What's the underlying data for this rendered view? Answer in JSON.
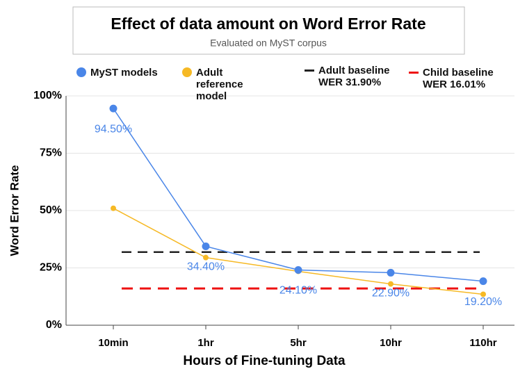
{
  "chart_data": {
    "type": "line",
    "title": "Effect of data amount on Word Error Rate",
    "subtitle": "Evaluated on MyST corpus",
    "xlabel": "Hours of Fine-tuning Data",
    "ylabel": "Word Error Rate",
    "categories": [
      "10min",
      "1hr",
      "5hr",
      "10hr",
      "110hr"
    ],
    "series": [
      {
        "name": "MyST models",
        "color": "#4a86e8",
        "values": [
          94.5,
          34.4,
          24.1,
          22.9,
          19.2
        ],
        "value_labels": [
          "94.50%",
          "34.40%",
          "24.10%",
          "22.90%",
          "19.20%"
        ]
      },
      {
        "name": "Adult reference model",
        "color": "#f6b925",
        "values": [
          51,
          29.5,
          23.5,
          18,
          13.5
        ]
      }
    ],
    "baselines": [
      {
        "name": "Adult baseline WER 31.90%",
        "color": "#222222",
        "value": 31.9
      },
      {
        "name": "Child baseline WER 16.01%",
        "color": "#ee1111",
        "value": 16.01
      }
    ],
    "ylim": [
      0,
      100
    ],
    "yticks": [
      {
        "value": 0,
        "label": "0%"
      },
      {
        "value": 25,
        "label": "25%"
      },
      {
        "value": 50,
        "label": "50%"
      },
      {
        "value": 75,
        "label": "75%"
      },
      {
        "value": 100,
        "label": "100%"
      }
    ],
    "grid": true
  }
}
